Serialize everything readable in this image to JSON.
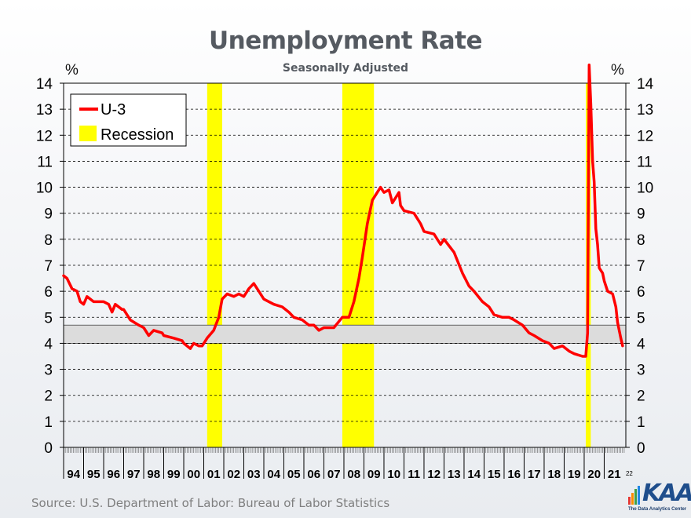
{
  "header": {
    "title": "Unemployment Rate",
    "subtitle": "Seasonally Adjusted",
    "unit_left": "%",
    "unit_right": "%"
  },
  "footer": {
    "source": "Source: U.S. Department of Labor: Bureau of Labor Statistics",
    "logo_text": "KAA",
    "logo_tagline": "The Data Analytics Center"
  },
  "colors": {
    "series": "#ff0000",
    "recession": "#ffff00",
    "band": "#dcdcdc",
    "grid": "#000000"
  },
  "chart_data": {
    "type": "line",
    "title": "Unemployment Rate",
    "subtitle": "Seasonally Adjusted",
    "ylabel": "%",
    "ylim": [
      0,
      14
    ],
    "yticks": [
      "0",
      "1",
      "2",
      "3",
      "4",
      "5",
      "6",
      "7",
      "8",
      "9",
      "10",
      "11",
      "12",
      "13",
      "14"
    ],
    "xlim": [
      1994.0,
      2022.08
    ],
    "x_year_labels": [
      "94",
      "95",
      "96",
      "97",
      "98",
      "99",
      "00",
      "01",
      "02",
      "03",
      "04",
      "05",
      "06",
      "07",
      "08",
      "09",
      "10",
      "11",
      "12",
      "13",
      "14",
      "15",
      "16",
      "17",
      "18",
      "19",
      "20",
      "21"
    ],
    "x_extra_label": "22",
    "grid": "horizontal dashed",
    "legend": {
      "placement": "top-left",
      "entries": [
        "U-3",
        "Recession"
      ]
    },
    "band": {
      "y0": 4.0,
      "y1": 4.7
    },
    "recessions": [
      {
        "start": 2001.17,
        "end": 2001.92
      },
      {
        "start": 2007.92,
        "end": 2009.5
      },
      {
        "start": 2020.08,
        "end": 2020.33
      }
    ],
    "series": [
      {
        "name": "U-3",
        "points": [
          [
            1994.0,
            6.6
          ],
          [
            1994.17,
            6.5
          ],
          [
            1994.42,
            6.1
          ],
          [
            1994.67,
            6.0
          ],
          [
            1994.83,
            5.6
          ],
          [
            1995.0,
            5.5
          ],
          [
            1995.17,
            5.8
          ],
          [
            1995.5,
            5.6
          ],
          [
            1995.83,
            5.6
          ],
          [
            1996.0,
            5.6
          ],
          [
            1996.25,
            5.5
          ],
          [
            1996.42,
            5.2
          ],
          [
            1996.58,
            5.5
          ],
          [
            1996.92,
            5.3
          ],
          [
            1997.0,
            5.3
          ],
          [
            1997.33,
            4.9
          ],
          [
            1997.75,
            4.7
          ],
          [
            1998.0,
            4.6
          ],
          [
            1998.25,
            4.3
          ],
          [
            1998.5,
            4.5
          ],
          [
            1998.92,
            4.4
          ],
          [
            1999.0,
            4.3
          ],
          [
            1999.5,
            4.2
          ],
          [
            1999.92,
            4.1
          ],
          [
            2000.0,
            4.0
          ],
          [
            2000.33,
            3.8
          ],
          [
            2000.5,
            4.0
          ],
          [
            2000.75,
            3.9
          ],
          [
            2000.92,
            3.9
          ],
          [
            2001.17,
            4.2
          ],
          [
            2001.5,
            4.5
          ],
          [
            2001.75,
            5.0
          ],
          [
            2001.92,
            5.7
          ],
          [
            2002.17,
            5.9
          ],
          [
            2002.5,
            5.8
          ],
          [
            2002.75,
            5.9
          ],
          [
            2003.0,
            5.8
          ],
          [
            2003.25,
            6.1
          ],
          [
            2003.5,
            6.3
          ],
          [
            2003.75,
            6.0
          ],
          [
            2004.0,
            5.7
          ],
          [
            2004.25,
            5.6
          ],
          [
            2004.5,
            5.5
          ],
          [
            2004.92,
            5.4
          ],
          [
            2005.25,
            5.2
          ],
          [
            2005.5,
            5.0
          ],
          [
            2005.92,
            4.9
          ],
          [
            2006.25,
            4.7
          ],
          [
            2006.5,
            4.7
          ],
          [
            2006.75,
            4.5
          ],
          [
            2007.0,
            4.6
          ],
          [
            2007.5,
            4.6
          ],
          [
            2007.92,
            5.0
          ],
          [
            2008.25,
            5.0
          ],
          [
            2008.5,
            5.6
          ],
          [
            2008.75,
            6.5
          ],
          [
            2008.92,
            7.3
          ],
          [
            2009.17,
            8.6
          ],
          [
            2009.42,
            9.5
          ],
          [
            2009.83,
            10.0
          ],
          [
            2010.0,
            9.8
          ],
          [
            2010.25,
            9.9
          ],
          [
            2010.42,
            9.4
          ],
          [
            2010.75,
            9.8
          ],
          [
            2010.83,
            9.3
          ],
          [
            2011.0,
            9.1
          ],
          [
            2011.5,
            9.0
          ],
          [
            2011.83,
            8.6
          ],
          [
            2012.0,
            8.3
          ],
          [
            2012.5,
            8.2
          ],
          [
            2012.83,
            7.8
          ],
          [
            2013.0,
            8.0
          ],
          [
            2013.5,
            7.5
          ],
          [
            2013.92,
            6.7
          ],
          [
            2014.25,
            6.2
          ],
          [
            2014.5,
            6.0
          ],
          [
            2014.92,
            5.6
          ],
          [
            2015.25,
            5.4
          ],
          [
            2015.5,
            5.1
          ],
          [
            2015.92,
            5.0
          ],
          [
            2016.25,
            5.0
          ],
          [
            2016.5,
            4.9
          ],
          [
            2016.92,
            4.7
          ],
          [
            2017.25,
            4.4
          ],
          [
            2017.5,
            4.3
          ],
          [
            2017.92,
            4.1
          ],
          [
            2018.25,
            4.0
          ],
          [
            2018.5,
            3.8
          ],
          [
            2018.92,
            3.9
          ],
          [
            2019.25,
            3.7
          ],
          [
            2019.5,
            3.6
          ],
          [
            2019.92,
            3.5
          ],
          [
            2020.08,
            3.5
          ],
          [
            2020.17,
            4.4
          ],
          [
            2020.25,
            14.7
          ],
          [
            2020.33,
            13.2
          ],
          [
            2020.42,
            11.0
          ],
          [
            2020.5,
            10.2
          ],
          [
            2020.58,
            8.4
          ],
          [
            2020.67,
            7.8
          ],
          [
            2020.75,
            6.9
          ],
          [
            2020.92,
            6.7
          ],
          [
            2021.0,
            6.4
          ],
          [
            2021.17,
            6.0
          ],
          [
            2021.42,
            5.9
          ],
          [
            2021.58,
            5.4
          ],
          [
            2021.67,
            4.8
          ],
          [
            2021.83,
            4.2
          ],
          [
            2021.92,
            3.9
          ]
        ]
      }
    ]
  }
}
